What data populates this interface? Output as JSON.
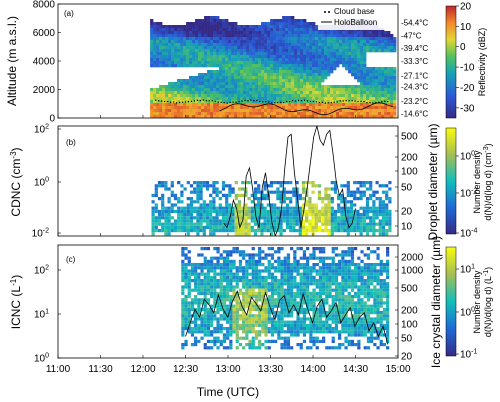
{
  "chart_data": [
    {
      "type": "heatmap",
      "panel": "(a)",
      "ylabel": "Altitude (m a.s.l.)",
      "ylim": [
        0,
        8000
      ],
      "yticks": [
        "0",
        "2000",
        "4000",
        "6000",
        "8000"
      ],
      "legend": [
        "Cloud base",
        "HoloBalloon"
      ],
      "temperature_labels": [
        "-54.4°C",
        "-47°C",
        "-39.4°C",
        "-33.3°C",
        "-27.1°C",
        "-24.3°C",
        "-23.2°C",
        "-14.6°C"
      ],
      "colorbar": {
        "label": "Reflectivity (dBZ)",
        "ticks": [
          "20",
          "10",
          "0",
          "-10",
          "-20",
          "-30"
        ],
        "range": [
          -35,
          20
        ]
      },
      "x_range": [
        "12:05",
        "14:58"
      ]
    },
    {
      "type": "heatmap",
      "panel": "(b)",
      "ylabel": "CDNC (cm",
      "ylabel_unit_sup": "-3",
      "ylabel_close": ")",
      "yticks": [
        "10",
        "10",
        "10"
      ],
      "ytick_exponents": [
        "2",
        "0",
        "-2"
      ],
      "right_label": "Droplet diameter (µm)",
      "right_ticks": [
        "500",
        "200",
        "100",
        "50",
        "20",
        "10"
      ],
      "colorbar": {
        "label": "Number density",
        "label2": "d(N)/d(log d) (cm",
        "label2_sup": "-3",
        "label2_close": ")",
        "ticks": [
          "10",
          "10",
          "10"
        ],
        "tick_exponents": [
          "0",
          "-2",
          "-4"
        ]
      },
      "cdnc_line": [
        0.03,
        0.02,
        0.05,
        0.2,
        0.1,
        0.02,
        0.04,
        1.5,
        3,
        0.5,
        0.05,
        0.02,
        0.6,
        2,
        0.3,
        0.03,
        0.01,
        0.02,
        0.1,
        3,
        40,
        50,
        2,
        0.2,
        0.02,
        0.1,
        0.6,
        5,
        40,
        100,
        30,
        20,
        50,
        70,
        10,
        1,
        0.3,
        0.5,
        0.05,
        0.02,
        0.03,
        0.1
      ]
    },
    {
      "type": "heatmap",
      "panel": "(c)",
      "ylabel": "ICNC (L",
      "ylabel_unit_sup": "-1",
      "ylabel_close": ")",
      "yticks": [
        "10",
        "10",
        "10"
      ],
      "ytick_exponents": [
        "2",
        "1",
        "0"
      ],
      "right_label": "Ice crystal diameter (µm)",
      "right_ticks": [
        "2000",
        "1000",
        "500",
        "200",
        "100",
        "50",
        "20"
      ],
      "colorbar": {
        "label": "Number density",
        "label2": "d(N)/d(log d) (L",
        "label2_sup": "-1",
        "label2_close": ")",
        "ticks": [
          "10",
          "10",
          "10"
        ],
        "tick_exponents": [
          "1",
          "0",
          "-1"
        ]
      },
      "icnc_line": [
        3,
        6,
        12,
        8,
        20,
        15,
        10,
        25,
        12,
        8,
        18,
        30,
        14,
        9,
        22,
        16,
        11,
        28,
        13,
        7,
        19,
        24,
        10,
        15,
        9,
        26,
        12,
        6,
        14,
        20,
        8,
        11,
        17,
        6,
        9,
        13,
        5,
        8,
        10,
        4,
        6,
        3,
        5,
        2
      ]
    }
  ],
  "xaxis": {
    "label": "Time (UTC)",
    "ticks": [
      "11:00",
      "11:30",
      "12:00",
      "12:30",
      "13:00",
      "13:30",
      "14:00",
      "14:30",
      "15:00"
    ]
  },
  "colors": {
    "refl_low": "#2b2c7c",
    "refl_mid": "#16a3b4",
    "refl_high": "#e0d632",
    "refl_top": "#c0262d",
    "parula_low": "#352a87",
    "parula_mid": "#12beb9",
    "parula_high": "#f9fb0e"
  }
}
